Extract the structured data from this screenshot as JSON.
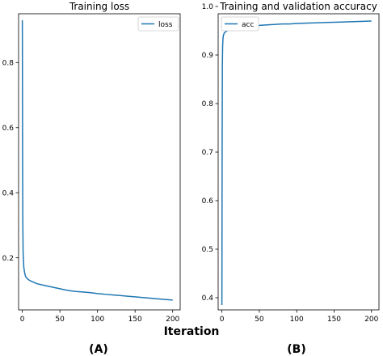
{
  "figure": {
    "shared_xlabel": "Iteration",
    "panel_labels": [
      "(A)",
      "(B)"
    ]
  },
  "chart_data": [
    {
      "type": "line",
      "title": "Training loss",
      "xlabel": "",
      "ylabel": "",
      "xlim": [
        -5,
        210
      ],
      "ylim": [
        0.04,
        0.95
      ],
      "xticks": [
        0,
        50,
        100,
        150,
        200
      ],
      "yticks": [
        0.2,
        0.4,
        0.6,
        0.8
      ],
      "grid": false,
      "legend": "top-right",
      "series": [
        {
          "name": "loss",
          "color": "#1f77b4",
          "x": [
            0,
            0.3,
            0.6,
            1,
            1.5,
            2,
            3,
            4,
            5,
            7,
            10,
            15,
            20,
            30,
            40,
            50,
            60,
            70,
            80,
            90,
            100,
            110,
            120,
            130,
            140,
            150,
            160,
            170,
            180,
            190,
            200
          ],
          "y": [
            0.93,
            0.55,
            0.32,
            0.22,
            0.19,
            0.17,
            0.155,
            0.145,
            0.14,
            0.135,
            0.13,
            0.125,
            0.12,
            0.115,
            0.11,
            0.105,
            0.1,
            0.097,
            0.095,
            0.093,
            0.09,
            0.088,
            0.086,
            0.084,
            0.082,
            0.08,
            0.078,
            0.076,
            0.074,
            0.072,
            0.07
          ]
        }
      ]
    },
    {
      "type": "line",
      "title": "Training and validation accuracy",
      "xlabel": "",
      "ylabel": "",
      "xlim": [
        -5,
        210
      ],
      "ylim": [
        0.375,
        0.985
      ],
      "xticks": [
        0,
        50,
        100,
        150,
        200
      ],
      "yticks": [
        0.4,
        0.5,
        0.6,
        0.7,
        0.8,
        0.9,
        1.0
      ],
      "grid": false,
      "legend": "top-left",
      "series": [
        {
          "name": "acc",
          "color": "#1f77b4",
          "x": [
            0,
            0.3,
            0.6,
            1,
            1.5,
            2,
            3,
            5,
            7,
            10,
            15,
            20,
            30,
            40,
            50,
            60,
            70,
            80,
            90,
            100,
            120,
            140,
            160,
            180,
            200
          ],
          "y": [
            0.385,
            0.7,
            0.88,
            0.92,
            0.935,
            0.94,
            0.945,
            0.948,
            0.95,
            0.952,
            0.954,
            0.956,
            0.958,
            0.96,
            0.961,
            0.962,
            0.963,
            0.964,
            0.964,
            0.965,
            0.966,
            0.967,
            0.968,
            0.969,
            0.97
          ]
        }
      ]
    }
  ]
}
